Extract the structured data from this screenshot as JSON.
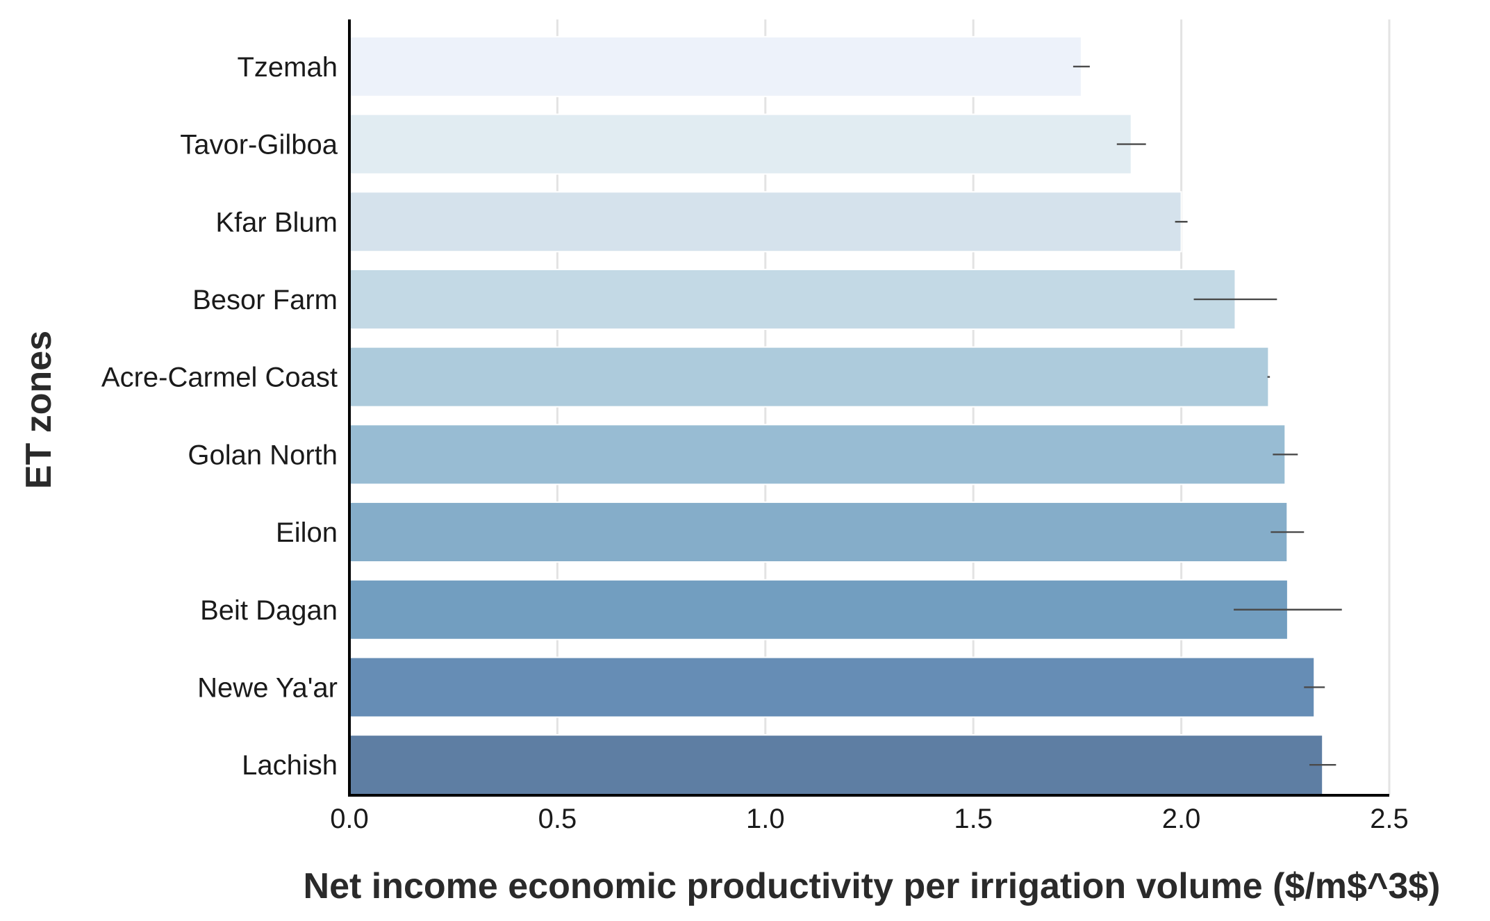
{
  "chart_data": {
    "type": "bar",
    "orientation": "horizontal",
    "categories": [
      "Tzemah",
      "Tavor-Gilboa",
      "Kfar Blum",
      "Besor Farm",
      "Acre-Carmel Coast",
      "Golan North",
      "Eilon",
      "Beit Dagan",
      "Newe Ya'ar",
      "Lachish"
    ],
    "values": [
      1.76,
      1.88,
      2.0,
      2.13,
      2.21,
      2.25,
      2.255,
      2.256,
      2.32,
      2.34
    ],
    "errors": [
      0.02,
      0.035,
      0.015,
      0.1,
      0.003,
      0.03,
      0.04,
      0.13,
      0.025,
      0.032
    ],
    "colors": [
      "#edf2fa",
      "#e1ecf2",
      "#d5e2ec",
      "#c3d9e5",
      "#adcbdc",
      "#98bcd3",
      "#85adc9",
      "#729ec0",
      "#668db5",
      "#5e7ea3"
    ],
    "xlabel": "Net income economic productivity per irrigation volume ($/m$^3$)",
    "ylabel": "ET zones",
    "xlim": [
      0,
      2.5
    ],
    "xticks": [
      "0.0",
      "0.5",
      "1.0",
      "1.5",
      "2.0",
      "2.5"
    ],
    "grid": "vertical"
  }
}
